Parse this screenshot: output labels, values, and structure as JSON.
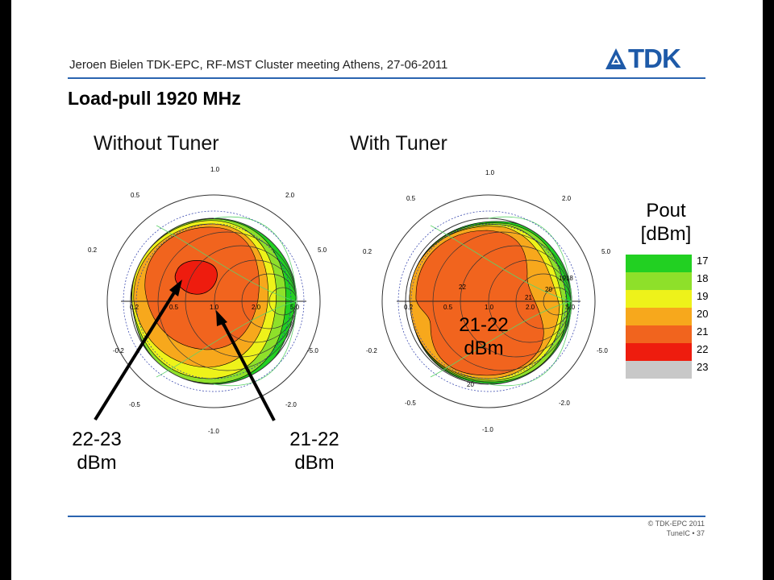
{
  "header": {
    "text": "Jeroen Bielen TDK-EPC, RF-MST Cluster meeting Athens, 27-06-2011",
    "logo_text": "TDK"
  },
  "title": "Load-pull 1920 MHz",
  "left_panel": {
    "title": "Without Tuner",
    "callout_left": [
      "22-23",
      "dBm"
    ],
    "callout_right": [
      "21-22",
      "dBm"
    ]
  },
  "right_panel": {
    "title": "With Tuner",
    "center_label": [
      "21-22",
      "dBm"
    ],
    "contour_labels": [
      "22",
      "21",
      "20",
      "1918",
      "20"
    ]
  },
  "smith_labels": {
    "top": "1.0",
    "upper_left": "0.5",
    "upper_right": "2.0",
    "mid_left": "0.2",
    "mid_right": "5.0",
    "axis": [
      "0.2",
      "0.5",
      "1.0",
      "2.0",
      "5.0"
    ],
    "low_left": "-0.2",
    "low_right": "-5.0",
    "lower_left": "-0.5",
    "lower_right": "-2.0",
    "bottom": "-1.0"
  },
  "legend": {
    "title": [
      "Pout",
      "[dBm]"
    ],
    "levels": [
      {
        "label": "17",
        "color": "#22d022"
      },
      {
        "label": "18",
        "color": "#8ee02a"
      },
      {
        "label": "19",
        "color": "#eef21a"
      },
      {
        "label": "20",
        "color": "#f7a81c"
      },
      {
        "label": "21",
        "color": "#f1641e"
      },
      {
        "label": "22",
        "color": "#ee1c0e"
      },
      {
        "label": "23",
        "color": "#c8c8c8"
      }
    ]
  },
  "footer": {
    "copyright": "© TDK-EPC 2011",
    "page": "TuneIC • 37"
  }
}
